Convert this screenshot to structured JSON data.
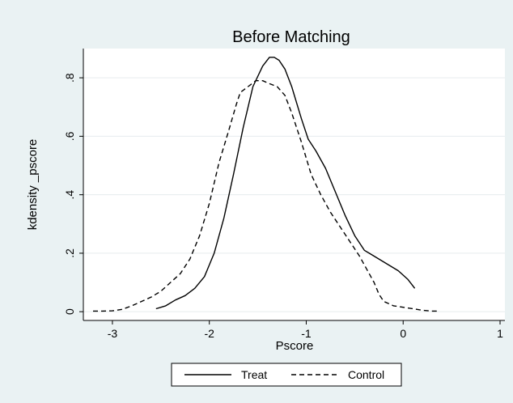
{
  "chart_data": {
    "type": "line",
    "title": "Before Matching",
    "xlabel": "Pscore",
    "ylabel": "kdensity _pscore",
    "xlim": [
      -3.3,
      1.05
    ],
    "ylim": [
      -0.03,
      0.9
    ],
    "x_ticks": [
      -3,
      -2,
      -1,
      0,
      1
    ],
    "x_tick_labels": [
      "-3",
      "-2",
      "-1",
      "0",
      "1"
    ],
    "y_ticks": [
      0,
      0.2,
      0.4,
      0.6,
      0.8
    ],
    "y_tick_labels": [
      "0",
      ".2",
      ".4",
      ".6",
      ".8"
    ],
    "grid": "horizontal",
    "legend_position": "bottom",
    "series": [
      {
        "name": "Treat",
        "style": "solid",
        "color": "#000000",
        "x": [
          -2.55,
          -2.45,
          -2.35,
          -2.25,
          -2.15,
          -2.05,
          -1.95,
          -1.85,
          -1.75,
          -1.65,
          -1.55,
          -1.45,
          -1.38,
          -1.33,
          -1.28,
          -1.22,
          -1.15,
          -1.05,
          -0.98,
          -0.9,
          -0.8,
          -0.7,
          -0.6,
          -0.5,
          -0.4,
          -0.35,
          -0.25,
          -0.15,
          -0.05,
          0.05,
          0.12
        ],
        "y": [
          0.01,
          0.02,
          0.04,
          0.055,
          0.08,
          0.12,
          0.2,
          0.32,
          0.47,
          0.63,
          0.77,
          0.84,
          0.87,
          0.87,
          0.86,
          0.83,
          0.77,
          0.66,
          0.59,
          0.55,
          0.49,
          0.41,
          0.33,
          0.26,
          0.21,
          0.2,
          0.18,
          0.16,
          0.14,
          0.11,
          0.08
        ]
      },
      {
        "name": "Control",
        "style": "dashed",
        "color": "#000000",
        "x": [
          -3.2,
          -3.1,
          -3.0,
          -2.9,
          -2.8,
          -2.7,
          -2.6,
          -2.5,
          -2.4,
          -2.3,
          -2.2,
          -2.1,
          -2.0,
          -1.9,
          -1.8,
          -1.72,
          -1.68,
          -1.6,
          -1.52,
          -1.45,
          -1.38,
          -1.3,
          -1.22,
          -1.15,
          -1.05,
          -0.95,
          -0.85,
          -0.75,
          -0.65,
          -0.55,
          -0.45,
          -0.35,
          -0.3,
          -0.25,
          -0.2,
          -0.1,
          0.0,
          0.1,
          0.2,
          0.3,
          0.35
        ],
        "y": [
          0.002,
          0.002,
          0.003,
          0.008,
          0.02,
          0.035,
          0.05,
          0.07,
          0.1,
          0.13,
          0.18,
          0.26,
          0.37,
          0.51,
          0.62,
          0.71,
          0.75,
          0.77,
          0.79,
          0.79,
          0.78,
          0.77,
          0.74,
          0.68,
          0.58,
          0.47,
          0.4,
          0.34,
          0.29,
          0.24,
          0.19,
          0.13,
          0.1,
          0.06,
          0.035,
          0.02,
          0.015,
          0.01,
          0.005,
          0.002,
          0.002
        ]
      }
    ]
  }
}
